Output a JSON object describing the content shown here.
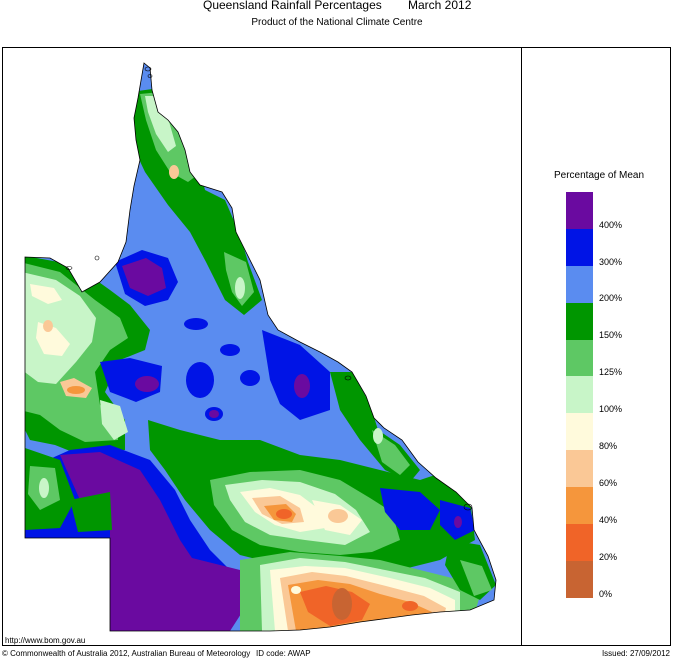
{
  "header": {
    "title": "Queensland Rainfall Percentages",
    "period": "March 2012",
    "subtitle": "Product of the National Climate Centre"
  },
  "legend": {
    "title": "Percentage of Mean",
    "bins": [
      {
        "label": "400%",
        "color": "#6a0aa0"
      },
      {
        "label": "300%",
        "color": "#0014e6"
      },
      {
        "label": "200%",
        "color": "#5a8cf0"
      },
      {
        "label": "150%",
        "color": "#009600"
      },
      {
        "label": "125%",
        "color": "#5ec864"
      },
      {
        "label": "100%",
        "color": "#c8f5c8"
      },
      {
        "label": "80%",
        "color": "#fffadc"
      },
      {
        "label": "60%",
        "color": "#fac896"
      },
      {
        "label": "40%",
        "color": "#f5963c"
      },
      {
        "label": "20%",
        "color": "#f06428"
      },
      {
        "label": "0%",
        "color": "#c86432"
      }
    ]
  },
  "footer": {
    "url": "http://www.bom.gov.au",
    "copyright": "© Commonwealth of Australia 2012, Australian Bureau of Meteorology",
    "id_code": "ID code: AWAP",
    "issued": "Issued: 27/09/2012"
  }
}
